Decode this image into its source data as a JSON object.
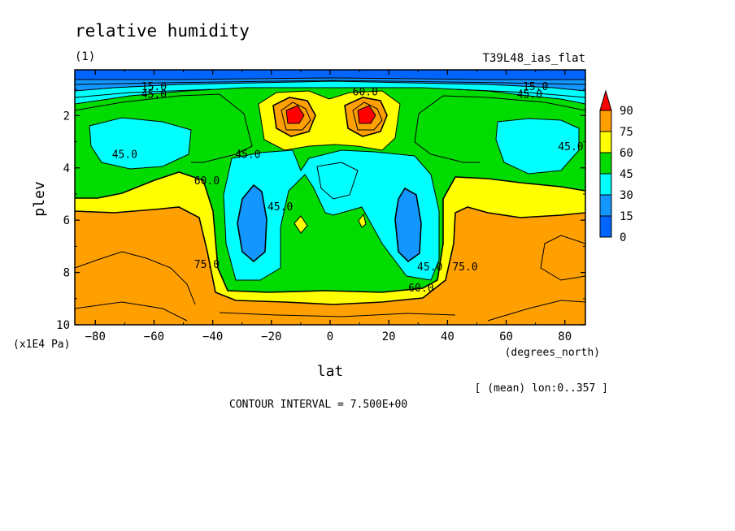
{
  "chart_data": {
    "type": "heatmap",
    "title": "relative humidity",
    "subtitle": "(1)",
    "model_label": "T39L48_ias_flat",
    "xlabel": "lat",
    "xunit": "(degrees_north)",
    "ylabel": "plev",
    "yunit": "(x1E4 Pa)",
    "region_note": "[ (mean) lon:0..357 ]",
    "contour_note": "CONTOUR INTERVAL = 7.500E+00",
    "xlim": [
      -87,
      87
    ],
    "ylim": [
      10,
      0.25
    ],
    "x_ticks": [
      "−80",
      "−60",
      "−40",
      "−20",
      "0",
      "20",
      "40",
      "60",
      "80"
    ],
    "y_ticks": [
      "2",
      "4",
      "6",
      "8",
      "10"
    ],
    "colorbar": {
      "labels": [
        "0",
        "15",
        "30",
        "45",
        "60",
        "75",
        "90"
      ],
      "bins": [
        {
          "min": 0,
          "max": 15,
          "color": "#0064ff"
        },
        {
          "min": 15,
          "max": 30,
          "color": "#1496ff"
        },
        {
          "min": 30,
          "max": 45,
          "color": "#00ffff"
        },
        {
          "min": 45,
          "max": 60,
          "color": "#00dc00"
        },
        {
          "min": 60,
          "max": 75,
          "color": "#ffff00"
        },
        {
          "min": 75,
          "max": 90,
          "color": "#ffa000"
        },
        {
          "min": 90,
          "max": 100,
          "color": "#ff0000"
        }
      ]
    },
    "contour_labels": [
      {
        "text": "15.0",
        "x": -60,
        "y": 0.9
      },
      {
        "text": "45.0",
        "x": -60,
        "y": 1.2
      },
      {
        "text": "15.0",
        "x": 70,
        "y": 0.9
      },
      {
        "text": "45.0",
        "x": 68,
        "y": 1.2
      },
      {
        "text": "60.0",
        "x": 12,
        "y": 1.1
      },
      {
        "text": "45.0",
        "x": -70,
        "y": 3.5
      },
      {
        "text": "45.0",
        "x": 82,
        "y": 3.2
      },
      {
        "text": "45.0",
        "x": -28,
        "y": 3.5
      },
      {
        "text": "60.0",
        "x": -42,
        "y": 4.5
      },
      {
        "text": "45.0",
        "x": -17,
        "y": 5.5
      },
      {
        "text": "75.0",
        "x": -42,
        "y": 7.7
      },
      {
        "text": "45.0",
        "x": 34,
        "y": 7.8
      },
      {
        "text": "60.0",
        "x": 31,
        "y": 8.6
      },
      {
        "text": "75.0",
        "x": 46,
        "y": 7.8
      }
    ]
  }
}
